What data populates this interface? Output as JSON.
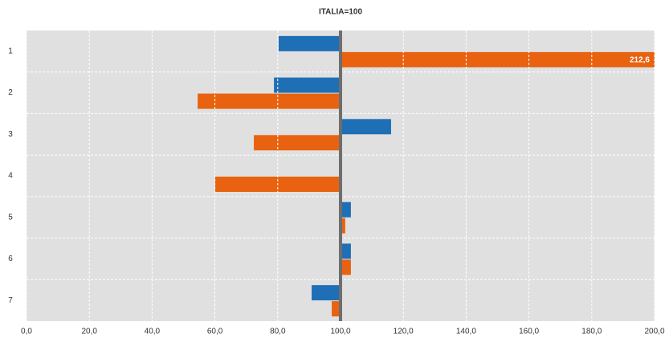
{
  "chart_data": {
    "type": "bar",
    "orientation": "horizontal",
    "title": "ITALIA=100",
    "categories": [
      "1",
      "2",
      "3",
      "4",
      "5",
      "6",
      "7"
    ],
    "baseline": 100,
    "series": [
      {
        "color": "#1f6fb6",
        "values": [
          80.3,
          78.8,
          116.1,
          null,
          103.3,
          103.3,
          90.8
        ]
      },
      {
        "color": "#e8620f",
        "values": [
          212.6,
          54.5,
          72.4,
          60.1,
          101.5,
          103.3,
          97.2
        ],
        "value_labels": [
          "212,6",
          null,
          null,
          null,
          null,
          null,
          null
        ]
      }
    ],
    "xlim": [
      0,
      200
    ],
    "xticks": [
      {
        "value": 0,
        "label": "0,0"
      },
      {
        "value": 20,
        "label": "20,0"
      },
      {
        "value": 40,
        "label": "40,0"
      },
      {
        "value": 60,
        "label": "60,0"
      },
      {
        "value": 80,
        "label": "80,0"
      },
      {
        "value": 100,
        "label": "100,0"
      },
      {
        "value": 120,
        "label": "120,0"
      },
      {
        "value": 140,
        "label": "140,0"
      },
      {
        "value": 160,
        "label": "160,0"
      },
      {
        "value": 180,
        "label": "180,0"
      },
      {
        "value": 200,
        "label": "200,0"
      }
    ],
    "grid": true
  }
}
